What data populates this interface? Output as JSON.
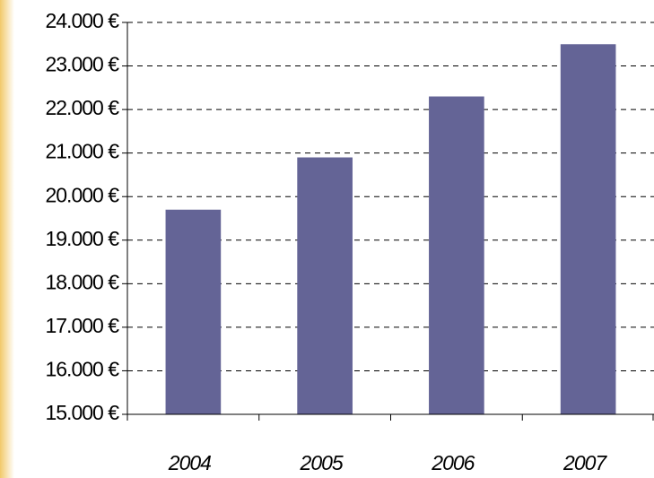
{
  "chart_data": {
    "type": "bar",
    "categories": [
      "2004",
      "2005",
      "2006",
      "2007"
    ],
    "values": [
      19700,
      20900,
      22300,
      23500
    ],
    "color": "#646496",
    "ylim": [
      15000,
      24000
    ],
    "yticks": [
      {
        "value": 15000,
        "label": "15.000 €"
      },
      {
        "value": 16000,
        "label": "16.000 €"
      },
      {
        "value": 17000,
        "label": "17.000 €"
      },
      {
        "value": 18000,
        "label": "18.000 €"
      },
      {
        "value": 19000,
        "label": "19.000 €"
      },
      {
        "value": 20000,
        "label": "20.000 €"
      },
      {
        "value": 21000,
        "label": "21.000 €"
      },
      {
        "value": 22000,
        "label": "22.000 €"
      },
      {
        "value": 23000,
        "label": "23.000 €"
      },
      {
        "value": 24000,
        "label": "24.000 €"
      }
    ],
    "grid": true
  }
}
